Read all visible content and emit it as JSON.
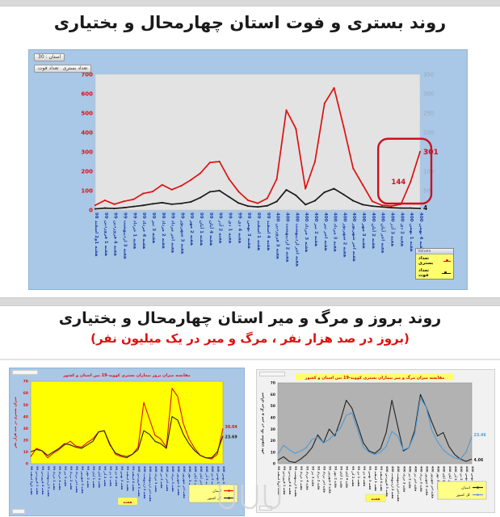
{
  "page": {
    "title1": "روند بستری و فوت استان چهارمحال و بختیاری",
    "title2": "روند بروز و مرگ و میر استان چهارمحال و بختیاری",
    "subtitle2": "(بروز در صد هزار نفر ، مرگ و میر در یک میلیون نفر)"
  },
  "main_panel": {
    "province_chip": "استان : 30",
    "series_tabs": [
      "تعداد بستری",
      "تعداد فوت"
    ],
    "legend_header": "Values"
  },
  "colors": {
    "hospitalized_line": "#dd1111",
    "deaths_line": "#1a1a1a",
    "country_line_blue": "#4f9bd5",
    "annotation_red": "#cc1122"
  },
  "chart_data": [
    {
      "type": "line",
      "title": "روند بستری و فوت استان چهارمحال و بختیاری",
      "categories": [
        "هفته 1و2 اسفند 98",
        "هفته 1 فروردین 99",
        "هفته 4 فروردین 99",
        "هفته 3 اردیبهشت 99",
        "هفته 1 خرداد 99",
        "هفته 4 خرداد 99",
        "هفته 3 تیر 99",
        "هفته 2 مرداد 99",
        "هفته اخر مرداد 99",
        "هفته 3 شهریور 99",
        "هفته 2 مهر 99",
        "هفته 1 آبان 99",
        "هفته 4 آبان 99",
        "هفته 2 آذر 99",
        "هفته 1 دی 99",
        "هفته 4 دی 99",
        "هفته 3 بهمن 99",
        "هفته 1 اسفند 99",
        "هفته 4 اسفند 99",
        "هفته 3 فروردین 400",
        "هفته 2 اردیبهشت 400",
        "هفته اخر اردیبهشت 400",
        "هفته 3 خرداد 400",
        "هفته 2 تیر 400",
        "هفته اخر تیر 400",
        "هفته 3 مرداد 400",
        "هفته 2 شهریور 400",
        "هفته اخر شهریور 400",
        "هفته 3 مهر 400",
        "هفته 2 آبان 400",
        "هفته اخر آبان 400",
        "هفته 3 آذر 400",
        "هفته 2 دی 400",
        "هفته 1 بهمن 400",
        "هفته 4 بهمن 400"
      ],
      "ylim_left": [
        0,
        700
      ],
      "yticks_left": [
        700,
        600,
        500,
        400,
        300,
        200,
        100,
        0
      ],
      "ylim_right": [
        0,
        350
      ],
      "yticks_right": [
        350,
        300,
        250,
        200,
        150,
        100,
        50
      ],
      "series": [
        {
          "name": "تعداد بستری",
          "color": "#dd1111",
          "axis": "left",
          "values": [
            25,
            50,
            30,
            45,
            55,
            85,
            95,
            130,
            105,
            125,
            155,
            190,
            245,
            250,
            160,
            95,
            50,
            35,
            60,
            160,
            515,
            420,
            110,
            250,
            550,
            630,
            430,
            215,
            130,
            45,
            25,
            20,
            30,
            144,
            301
          ]
        },
        {
          "name": "تعداد فوت",
          "color": "#1a1a1a",
          "axis": "right",
          "values": [
            3,
            5,
            4,
            6,
            9,
            12,
            16,
            19,
            15,
            17,
            21,
            32,
            47,
            50,
            34,
            18,
            10,
            8,
            11,
            22,
            52,
            38,
            14,
            24,
            46,
            55,
            40,
            24,
            14,
            10,
            8,
            6,
            5,
            5,
            4
          ]
        }
      ],
      "annotations": {
        "peak_last": "301",
        "peak_prev": "144",
        "deaths_last": "4"
      }
    },
    {
      "type": "line",
      "title": "مقایسه میزان بروز بیماران بستری کووید-19 بین استان و کشور",
      "ylabel": "میزان بستری در صد هزار نفر",
      "xlabel": "هفته",
      "categories": [
        "هفته 1و2 اسفند 98",
        "هفته 1 فروردین 99",
        "هفته 4 فروردین 99",
        "هفته 3 اردیبهشت 99",
        "هفته 1 خرداد 99",
        "هفته 4 خرداد 99",
        "هفته 3 تیر 99",
        "هفته 2 مرداد 99",
        "هفته اخر مرداد 99",
        "هفته 3 شهریور 99",
        "هفته 2 مهر 99",
        "هفته 1 آبان 99",
        "هفته 4 آبان 99",
        "هفته 2 آذر 99",
        "هفته 1 دی 99",
        "هفته 4 دی 99",
        "هفته 3 بهمن 99",
        "هفته 1 اسفند 99",
        "هفته 4 اسفند 99",
        "هفته 3 فروردین 400",
        "هفته 2 اردیبهشت 400",
        "هفته اخر اردیبهشت 400",
        "هفته 3 خرداد 400",
        "هفته 2 تیر 400",
        "هفته اخر تیر 400",
        "هفته 3 مرداد 400",
        "هفته 2 شهریور 400",
        "هفته اخر شهریور 400",
        "هفته 3 مهر 400",
        "هفته 2 آبان 400",
        "هفته اخر آبان 400",
        "هفته 3 آذر 400",
        "هفته 2 دی 400",
        "هفته 1 بهمن 400",
        "هفته 4 بهمن 400"
      ],
      "ylim_left": [
        0,
        70
      ],
      "yticks_left": [
        70,
        60,
        50,
        40,
        30,
        20,
        10,
        0
      ],
      "series": [
        {
          "name": "استان",
          "color": "#dd1111",
          "axis": "left",
          "values": [
            6,
            13,
            11,
            5,
            9,
            12,
            16,
            19,
            15,
            14,
            18,
            21,
            27,
            28,
            17,
            8,
            6,
            5,
            8,
            14,
            52,
            38,
            24,
            21,
            14,
            64,
            57,
            34,
            21,
            13,
            7,
            5,
            4,
            8,
            30.04
          ]
        },
        {
          "name": "کل کشور",
          "color": "#222222",
          "axis": "left",
          "values": [
            10,
            12,
            11,
            7,
            10,
            13,
            17,
            16,
            14,
            13,
            16,
            19,
            27,
            28,
            16,
            9,
            7,
            6,
            8,
            12,
            28,
            25,
            19,
            17,
            13,
            40,
            37,
            25,
            17,
            11,
            7,
            5,
            5,
            10,
            23.69
          ]
        }
      ],
      "end_labels": [
        {
          "series": 0,
          "text": "30.04",
          "dy": -1.5
        },
        {
          "series": 1,
          "text": "23.69",
          "dy": 1.5
        }
      ]
    },
    {
      "type": "line",
      "title": "مقایسه میزان مرگ و میر بیماران بستری کووید-19 بین استان و کشور",
      "ylabel": "میزان مرگ و میر در یک میلیون نفر",
      "xlabel": "هفته",
      "categories": [
        "هفته 1و2 اسفند 98",
        "هفته 1 فروردین 99",
        "هفته 4 فروردین 99",
        "هفته 3 اردیبهشت 99",
        "هفته 1 خرداد 99",
        "هفته 4 خرداد 99",
        "هفته 3 تیر 99",
        "هفته 2 مرداد 99",
        "هفته اخر مرداد 99",
        "هفته 3 شهریور 99",
        "هفته 2 مهر 99",
        "هفته 1 آبان 99",
        "هفته 4 آبان 99",
        "هفته 2 آذر 99",
        "هفته 1 دی 99",
        "هفته 4 دی 99",
        "هفته 3 بهمن 99",
        "هفته 1 اسفند 99",
        "هفته 4 اسفند 99",
        "هفته 3 فروردین 400",
        "هفته 2 اردیبهشت 400",
        "هفته اخر اردیبهشت 400",
        "هفته 3 خرداد 400",
        "هفته 2 تیر 400",
        "هفته اخر تیر 400",
        "هفته 3 مرداد 400",
        "هفته 2 شهریور 400",
        "هفته اخر شهریور 400",
        "هفته 3 مهر 400",
        "هفته 2 آبان 400",
        "هفته اخر آبان 400",
        "هفته 3 آذر 400",
        "هفته 2 دی 400",
        "هفته 1 بهمن 400",
        "هفته 4 بهمن 400"
      ],
      "ylim_left": [
        0,
        70
      ],
      "yticks_left": [
        70,
        60,
        50,
        40,
        30,
        20,
        10,
        0
      ],
      "series": [
        {
          "name": "استان",
          "color": "#222222",
          "axis": "left",
          "values": [
            3,
            6,
            2,
            1,
            4,
            8,
            14,
            25,
            18,
            30,
            24,
            38,
            55,
            48,
            33,
            18,
            11,
            9,
            13,
            27,
            55,
            33,
            11,
            14,
            29,
            60,
            49,
            36,
            24,
            27,
            15,
            8,
            4,
            2,
            4.06
          ]
        },
        {
          "name": "کل کشور",
          "color": "#4f9bd5",
          "axis": "left",
          "values": [
            8,
            16,
            12,
            9,
            11,
            14,
            21,
            23,
            18,
            21,
            26,
            31,
            42,
            44,
            29,
            14,
            10,
            8,
            10,
            15,
            28,
            24,
            12,
            14,
            26,
            57,
            49,
            29,
            19,
            12,
            8,
            5,
            4,
            10,
            23.46
          ]
        }
      ],
      "end_labels": [
        {
          "series": 1,
          "text": "23.46",
          "dy": -2
        },
        {
          "series": 0,
          "text": "4.06",
          "dy": 1.5
        }
      ]
    }
  ]
}
